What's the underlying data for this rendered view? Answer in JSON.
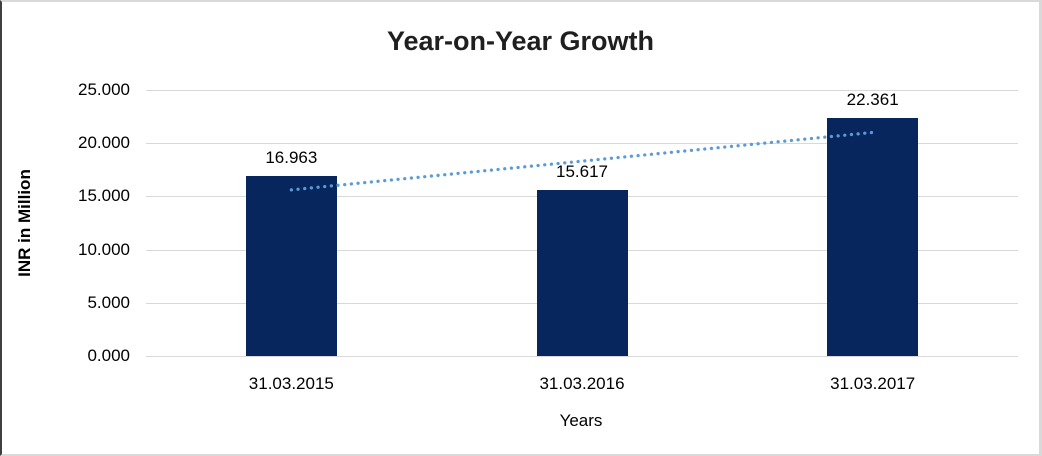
{
  "chart_data": {
    "type": "bar",
    "title": "Year-on-Year Growth",
    "xlabel": "Years",
    "ylabel": "INR in Million",
    "categories": [
      "31.03.2015",
      "31.03.2016",
      "31.03.2017"
    ],
    "values": [
      16963,
      15617,
      22361
    ],
    "value_labels": [
      "16.963",
      "15.617",
      "22.361"
    ],
    "ylim": [
      0,
      25000
    ],
    "y_tick_step": 5000,
    "y_ticks": [
      {
        "value": 0,
        "label": "0.000"
      },
      {
        "value": 5000,
        "label": "5.000"
      },
      {
        "value": 10000,
        "label": "10.000"
      },
      {
        "value": 15000,
        "label": "15.000"
      },
      {
        "value": 20000,
        "label": "20.000"
      },
      {
        "value": 25000,
        "label": "25.000"
      }
    ],
    "grid": true,
    "legend_position": "none",
    "bar_color": "#08265e",
    "gridline_color": "#d9d9d9",
    "trendline": {
      "type": "linear",
      "style": "dotted",
      "color": "#5b9bd5",
      "start_value": 15615,
      "end_value": 21013
    }
  }
}
